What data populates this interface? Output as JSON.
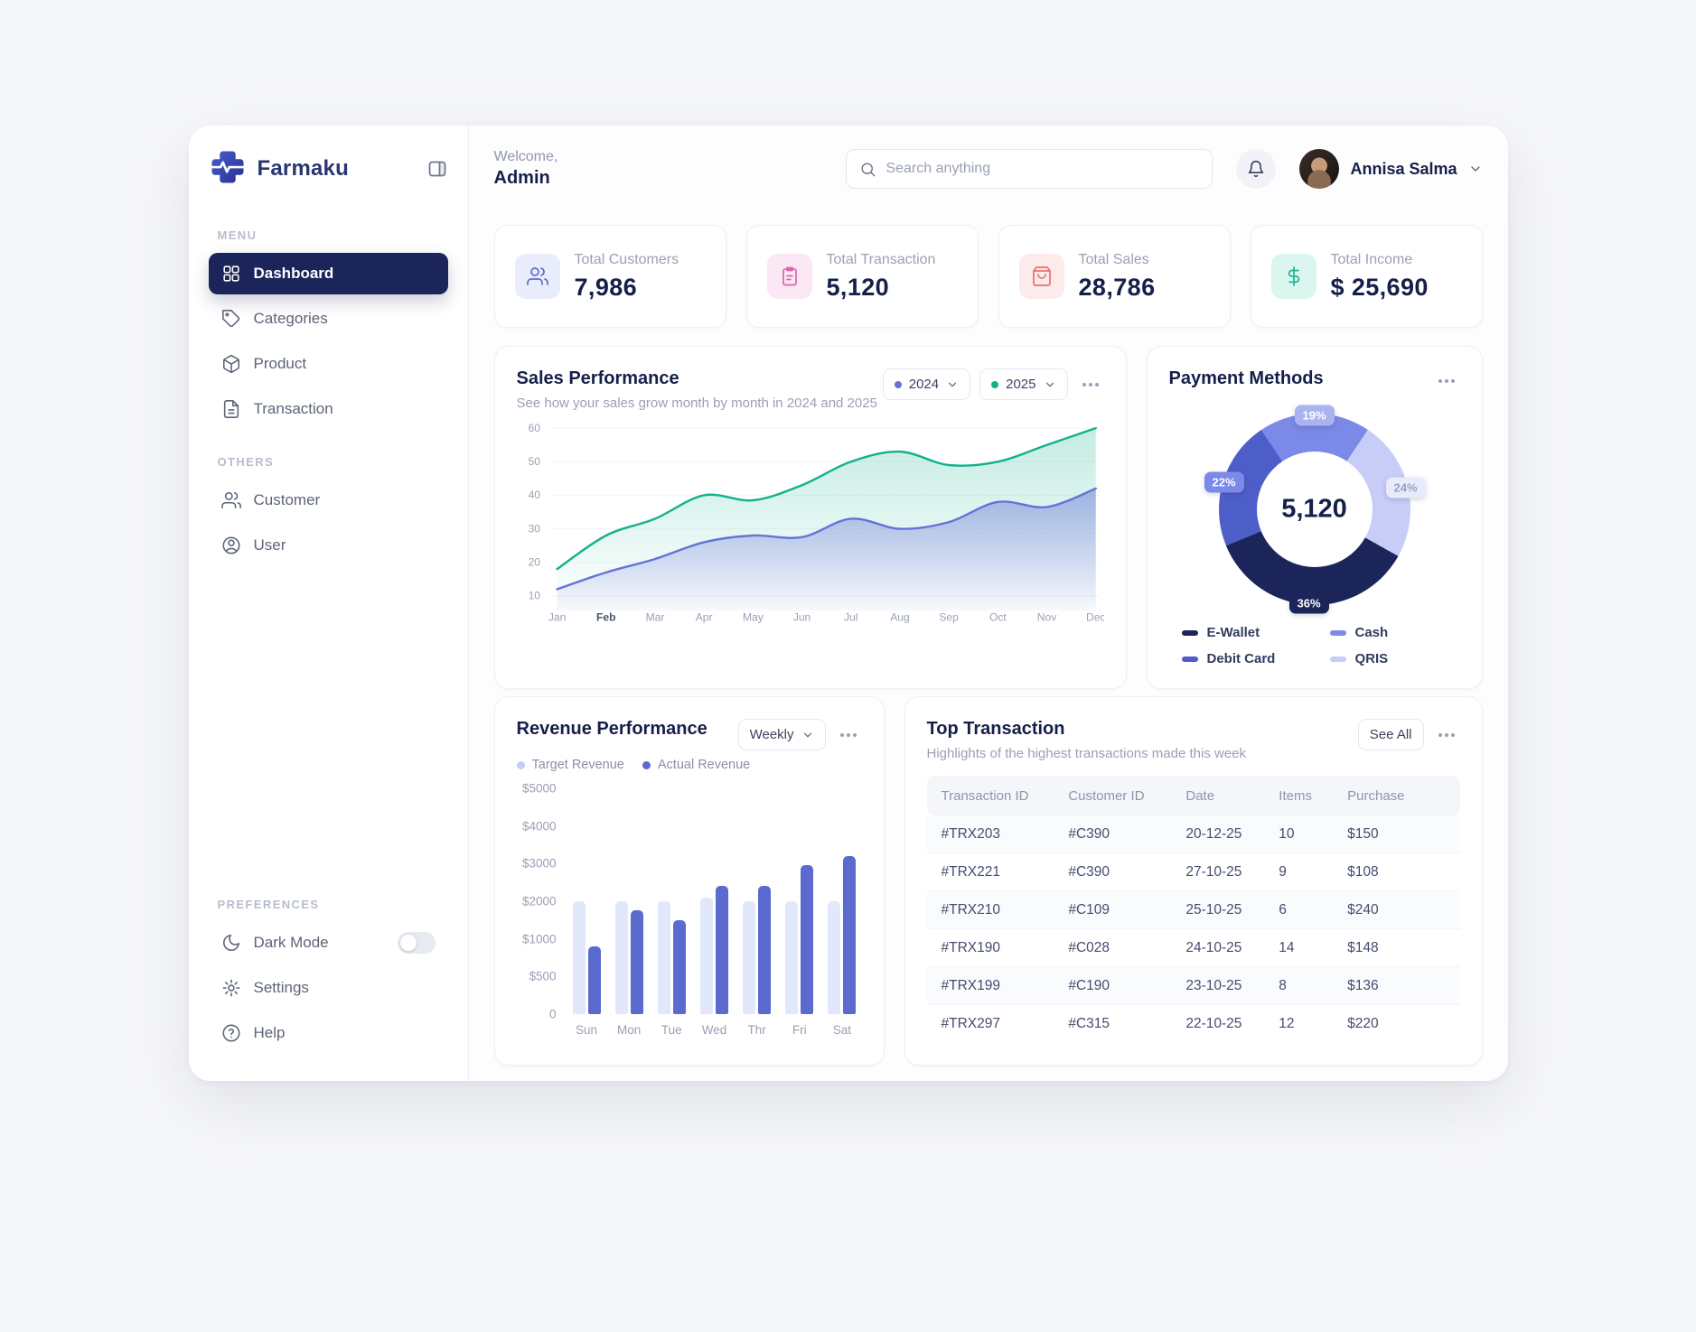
{
  "app": {
    "name": "Farmaku"
  },
  "header": {
    "welcome": "Welcome,",
    "role": "Admin",
    "search_placeholder": "Search anything",
    "user_name": "Annisa Salma"
  },
  "sidebar": {
    "sections": [
      {
        "label": "MENU",
        "items": [
          {
            "id": "dashboard",
            "label": "Dashboard",
            "icon": "grid",
            "active": true
          },
          {
            "id": "categories",
            "label": "Categories",
            "icon": "tag"
          },
          {
            "id": "product",
            "label": "Product",
            "icon": "box"
          },
          {
            "id": "transaction",
            "label": "Transaction",
            "icon": "receipt"
          }
        ]
      },
      {
        "label": "OTHERS",
        "items": [
          {
            "id": "customer",
            "label": "Customer",
            "icon": "users"
          },
          {
            "id": "user",
            "label": "User",
            "icon": "user-circle"
          }
        ]
      }
    ],
    "preferences": {
      "label": "PREFERENCES",
      "items": [
        {
          "id": "dark-mode",
          "label": "Dark Mode",
          "icon": "moon",
          "toggle": true
        },
        {
          "id": "settings",
          "label": "Settings",
          "icon": "gear"
        },
        {
          "id": "help",
          "label": "Help",
          "icon": "help"
        }
      ]
    }
  },
  "stats": [
    {
      "id": "customers",
      "label": "Total Customers",
      "value": "7,986",
      "icon": "users",
      "bg": "#e9ecfb",
      "fg": "#5a6acf"
    },
    {
      "id": "transactions",
      "label": "Total Transaction",
      "value": "5,120",
      "icon": "clipboard",
      "bg": "#fce7f4",
      "fg": "#d966ae"
    },
    {
      "id": "sales",
      "label": "Total Sales",
      "value": "28,786",
      "icon": "bag",
      "bg": "#fdeaea",
      "fg": "#e57373"
    },
    {
      "id": "income",
      "label": "Total Income",
      "value": "$ 25,690",
      "icon": "dollar",
      "bg": "#daf6ee",
      "fg": "#16b795"
    }
  ],
  "chart_data": [
    {
      "id": "sales-performance",
      "type": "line",
      "title": "Sales Performance",
      "subtitle": "See how your sales grow month by month in 2024 and 2025",
      "categories": [
        "Jan",
        "Feb",
        "Mar",
        "Apr",
        "May",
        "Jun",
        "Jul",
        "Aug",
        "Sep",
        "Oct",
        "Nov",
        "Dec"
      ],
      "emphasized_category": "Feb",
      "series": [
        {
          "name": "2024",
          "color": "#6473d8",
          "values": [
            12,
            17,
            21,
            26,
            28,
            27.5,
            33,
            30,
            32,
            38,
            36.5,
            42
          ]
        },
        {
          "name": "2025",
          "color": "#12b28c",
          "values": [
            18,
            28,
            33,
            40,
            38.5,
            43,
            50,
            53,
            49,
            50,
            55,
            60
          ]
        }
      ],
      "ylim": [
        10,
        60
      ],
      "yticks": [
        10,
        20,
        30,
        40,
        50,
        60
      ],
      "grid": true,
      "legend_position": "top-right-filters"
    },
    {
      "id": "payment-methods",
      "type": "pie",
      "title": "Payment Methods",
      "center_value": "5,120",
      "slices": [
        {
          "label": "Cash",
          "pct": 19,
          "color": "#7b89e8",
          "chip_bg": "#a9b3f0",
          "chip_fg": "#ffffff"
        },
        {
          "label": "QRIS",
          "pct": 24,
          "color": "#c7cdf6",
          "chip_bg": "#e8ebfa",
          "chip_fg": "#9aa2c0"
        },
        {
          "label": "E-Wallet",
          "pct": 36,
          "color": "#1b2559",
          "chip_bg": "#1b2559",
          "chip_fg": "#ffffff"
        },
        {
          "label": "Debit Card",
          "pct": 22,
          "color": "#4d5ec9",
          "chip_bg": "#7b89e8",
          "chip_fg": "#ffffff"
        }
      ],
      "legend_order": [
        "E-Wallet",
        "Cash",
        "Debit Card",
        "QRIS"
      ]
    },
    {
      "id": "revenue-performance",
      "type": "bar",
      "title": "Revenue Performance",
      "period_label": "Weekly",
      "categories": [
        "Sun",
        "Mon",
        "Tue",
        "Wed",
        "Thr",
        "Fri",
        "Sat"
      ],
      "series": [
        {
          "name": "Target Revenue",
          "color": "#e2e8fb",
          "dot": "#c5cdf3",
          "values": [
            2000,
            2000,
            2000,
            2100,
            2000,
            2000,
            2000
          ]
        },
        {
          "name": "Actual Revenue",
          "color": "#5a6acf",
          "dot": "#5a6acf",
          "values": [
            900,
            1750,
            1500,
            2400,
            2400,
            2950,
            3200
          ]
        }
      ],
      "yticks": [
        0,
        500,
        1000,
        2000,
        3000,
        4000,
        5000
      ],
      "ytick_labels": [
        "0",
        "$500",
        "$1000",
        "$2000",
        "$3000",
        "$4000",
        "$5000"
      ]
    }
  ],
  "transactions_table": {
    "title": "Top Transaction",
    "subtitle": "Highlights of the highest transactions made this week",
    "see_all_label": "See All",
    "columns": [
      "Transaction ID",
      "Customer ID",
      "Date",
      "Items",
      "Purchase"
    ],
    "rows": [
      [
        "#TRX203",
        "#C390",
        "20-12-25",
        "10",
        "$150"
      ],
      [
        "#TRX221",
        "#C390",
        "27-10-25",
        "9",
        "$108"
      ],
      [
        "#TRX210",
        "#C109",
        "25-10-25",
        "6",
        "$240"
      ],
      [
        "#TRX190",
        "#C028",
        "24-10-25",
        "14",
        "$148"
      ],
      [
        "#TRX199",
        "#C190",
        "23-10-25",
        "8",
        "$136"
      ],
      [
        "#TRX297",
        "#C315",
        "22-10-25",
        "12",
        "$220"
      ]
    ]
  }
}
